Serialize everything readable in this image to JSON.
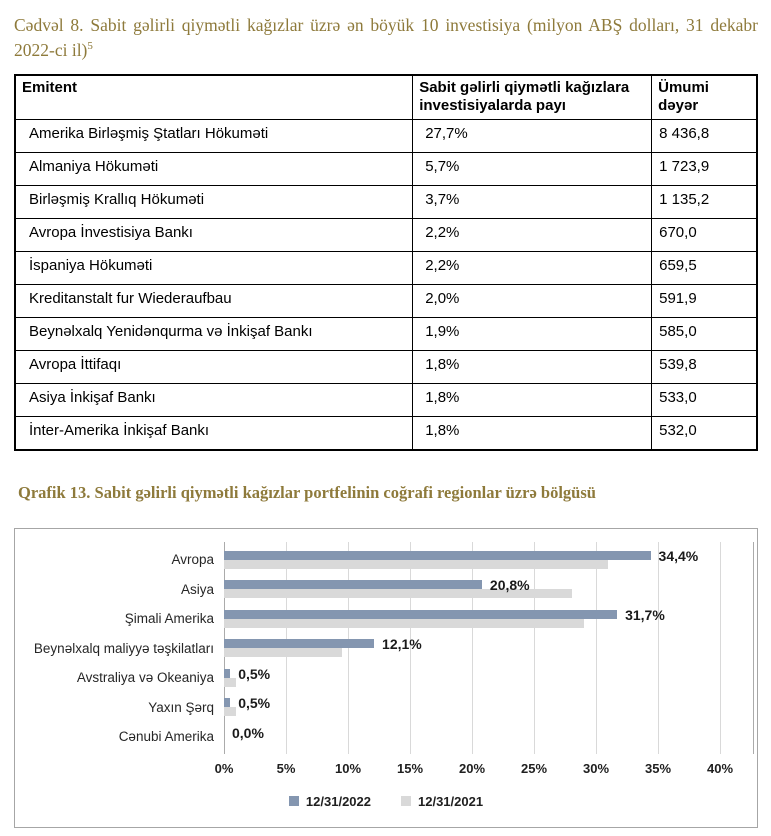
{
  "colors": {
    "caption": "#8E7A3B",
    "bar_2022": "#8496B0",
    "bar_2021": "#D9D9D9",
    "gridline": "#D9D9D9",
    "axis_line": "#ABABAB",
    "chart_border": "#A6A6A6"
  },
  "table_section": {
    "caption": "Cədvəl 8. Sabit gəlirli qiymətli kağızlar üzrə ən böyük 10 investisiya (milyon ABŞ dolları, 31 dekabr 2022-ci il)",
    "footnote_marker": "5",
    "headers": [
      "Emitent",
      "Sabit gəlirli qiymətli kağızlara investisiyalarda payı",
      "Ümumi dəyər"
    ],
    "rows": [
      {
        "emitent": "Amerika Birləşmiş Ştatları Hökuməti",
        "pay": "27,7%",
        "deyer": "8 436,8"
      },
      {
        "emitent": "Almaniya Hökuməti",
        "pay": "5,7%",
        "deyer": "1 723,9"
      },
      {
        "emitent": "Birləşmiş Krallıq Hökuməti",
        "pay": "3,7%",
        "deyer": "1 135,2"
      },
      {
        "emitent": "Avropa İnvestisiya Bankı",
        "pay": "2,2%",
        "deyer": "670,0"
      },
      {
        "emitent": "İspaniya Hökuməti",
        "pay": "2,2%",
        "deyer": "659,5"
      },
      {
        "emitent": "Kreditanstalt fur Wiederaufbau",
        "pay": "2,0%",
        "deyer": "591,9"
      },
      {
        "emitent": "Beynəlxalq Yenidənqurma və İnkişaf Bankı",
        "pay": "1,9%",
        "deyer": "585,0"
      },
      {
        "emitent": "Avropa İttifaqı",
        "pay": "1,8%",
        "deyer": "539,8"
      },
      {
        "emitent": "Asiya İnkişaf Bankı",
        "pay": "1,8%",
        "deyer": "533,0"
      },
      {
        "emitent": "İnter-Amerika İnkişaf Bankı",
        "pay": "1,8%",
        "deyer": "532,0"
      }
    ]
  },
  "chart_section": {
    "caption": "Qrafik 13. Sabit gəlirli qiymətli kağızlar portfelinin coğrafi regionlar üzrə bölgüsü"
  },
  "chart_data": {
    "type": "bar",
    "orientation": "horizontal",
    "title": "Qrafik 13. Sabit gəlirli qiymətli kağızlar portfelinin coğrafi regionlar üzrə bölgüsü",
    "categories": [
      "Avropa",
      "Asiya",
      "Şimali Amerika",
      "Beynəlxalq maliyyə təşkilatları",
      "Avstraliya və Okeaniya",
      "Yaxın Şərq",
      "Cənubi Amerika"
    ],
    "series": [
      {
        "name": "12/31/2022",
        "color": "#8496B0",
        "values": [
          34.4,
          20.8,
          31.7,
          12.1,
          0.5,
          0.5,
          0.0
        ],
        "labels": [
          "34,4%",
          "20,8%",
          "31,7%",
          "12,1%",
          "0,5%",
          "0,5%",
          "0,0%"
        ]
      },
      {
        "name": "12/31/2021",
        "color": "#D9D9D9",
        "values": [
          31.0,
          28.1,
          29.0,
          9.5,
          1.0,
          1.0,
          0.0
        ]
      }
    ],
    "xlim": [
      0,
      40
    ],
    "x_tick_step": 5,
    "x_ticks": [
      "0%",
      "5%",
      "10%",
      "15%",
      "20%",
      "25%",
      "30%",
      "35%",
      "40%"
    ],
    "grid": true,
    "legend_position": "bottom",
    "data_labels_on_series": "12/31/2022"
  }
}
